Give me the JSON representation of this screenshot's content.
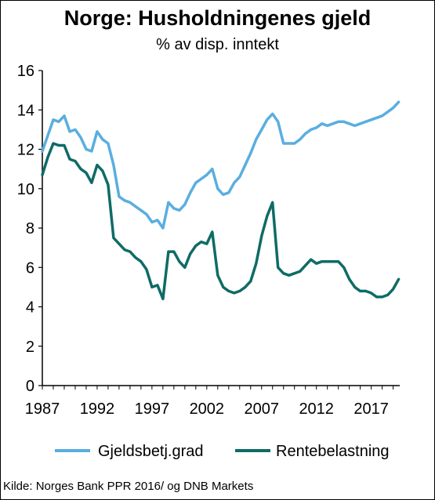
{
  "chart_data": {
    "type": "line",
    "title": "Norge: Husholdningenes gjeld",
    "subtitle": "% av disp. inntekt",
    "source": "Kilde: Norges Bank  PPR 2016/  og DNB Markets",
    "xlabel": "",
    "ylabel": "",
    "xlim": [
      1987,
      2019.6
    ],
    "ylim": [
      0,
      16
    ],
    "yticks": [
      0,
      2,
      4,
      6,
      8,
      10,
      12,
      14,
      16
    ],
    "xticks": [
      "1987",
      "1992",
      "1997",
      "2002",
      "2007",
      "2012",
      "2017"
    ],
    "grid": false,
    "legend": "bottom",
    "series": [
      {
        "name": "Gjeldsbetj.grad",
        "color": "#5aaedf",
        "x": [
          1987.0,
          1987.5,
          1988.0,
          1988.5,
          1989.0,
          1989.5,
          1990.0,
          1990.5,
          1991.0,
          1991.5,
          1992.0,
          1992.5,
          1993.0,
          1993.5,
          1994.0,
          1994.5,
          1995.0,
          1995.5,
          1996.0,
          1996.5,
          1997.0,
          1997.5,
          1998.0,
          1998.5,
          1999.0,
          1999.5,
          2000.0,
          2000.5,
          2001.0,
          2001.5,
          2002.0,
          2002.5,
          2003.0,
          2003.5,
          2004.0,
          2004.5,
          2005.0,
          2005.5,
          2006.0,
          2006.5,
          2007.0,
          2007.5,
          2008.0,
          2008.5,
          2009.0,
          2009.5,
          2010.0,
          2010.5,
          2011.0,
          2011.5,
          2012.0,
          2012.5,
          2013.0,
          2013.5,
          2014.0,
          2014.5,
          2015.0,
          2015.5,
          2016.0,
          2016.5,
          2017.0,
          2017.5,
          2018.0,
          2018.5,
          2019.0,
          2019.5
        ],
        "values": [
          11.9,
          12.7,
          13.5,
          13.4,
          13.7,
          12.9,
          13.0,
          12.6,
          12.0,
          11.9,
          12.9,
          12.5,
          12.3,
          11.2,
          9.6,
          9.4,
          9.3,
          9.1,
          8.9,
          8.7,
          8.3,
          8.4,
          8.0,
          9.3,
          9.0,
          8.9,
          9.2,
          9.8,
          10.3,
          10.5,
          10.7,
          11.0,
          10.0,
          9.7,
          9.8,
          10.3,
          10.6,
          11.2,
          11.8,
          12.5,
          13.0,
          13.5,
          13.8,
          13.4,
          12.3,
          12.3,
          12.3,
          12.5,
          12.8,
          13.0,
          13.1,
          13.3,
          13.2,
          13.3,
          13.4,
          13.4,
          13.3,
          13.2,
          13.3,
          13.4,
          13.5,
          13.6,
          13.7,
          13.9,
          14.1,
          14.4
        ]
      },
      {
        "name": "Rentebelastning",
        "color": "#0f6b66",
        "x": [
          1987.0,
          1987.5,
          1988.0,
          1988.5,
          1989.0,
          1989.5,
          1990.0,
          1990.5,
          1991.0,
          1991.5,
          1992.0,
          1992.5,
          1993.0,
          1993.5,
          1994.0,
          1994.5,
          1995.0,
          1995.5,
          1996.0,
          1996.5,
          1997.0,
          1997.5,
          1998.0,
          1998.5,
          1999.0,
          1999.5,
          2000.0,
          2000.5,
          2001.0,
          2001.5,
          2002.0,
          2002.5,
          2003.0,
          2003.5,
          2004.0,
          2004.5,
          2005.0,
          2005.5,
          2006.0,
          2006.5,
          2007.0,
          2007.5,
          2008.0,
          2008.5,
          2009.0,
          2009.5,
          2010.0,
          2010.5,
          2011.0,
          2011.5,
          2012.0,
          2012.5,
          2013.0,
          2013.5,
          2014.0,
          2014.5,
          2015.0,
          2015.5,
          2016.0,
          2016.5,
          2017.0,
          2017.5,
          2018.0,
          2018.5,
          2019.0,
          2019.5
        ],
        "values": [
          10.7,
          11.6,
          12.3,
          12.2,
          12.2,
          11.5,
          11.4,
          11.0,
          10.8,
          10.3,
          11.2,
          10.9,
          10.2,
          7.5,
          7.2,
          6.9,
          6.8,
          6.5,
          6.3,
          5.9,
          5.0,
          5.1,
          4.4,
          6.8,
          6.8,
          6.3,
          6.0,
          6.7,
          7.1,
          7.3,
          7.2,
          7.8,
          5.6,
          5.0,
          4.8,
          4.7,
          4.8,
          5.0,
          5.3,
          6.2,
          7.6,
          8.6,
          9.3,
          6.0,
          5.7,
          5.6,
          5.7,
          5.8,
          6.1,
          6.4,
          6.2,
          6.3,
          6.3,
          6.3,
          6.3,
          6.0,
          5.4,
          5.0,
          4.8,
          4.8,
          4.7,
          4.5,
          4.5,
          4.6,
          4.9,
          5.4
        ]
      }
    ]
  }
}
